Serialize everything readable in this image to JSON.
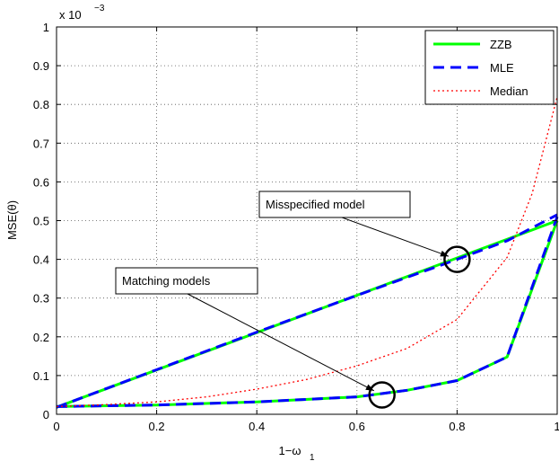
{
  "chart_data": {
    "type": "line",
    "title": "",
    "xlabel": "1−ω",
    "xlabel_sub": "1",
    "ylabel": "MSE(θ)",
    "y_exponent_prefix": "x 10",
    "y_exponent_power": "−3",
    "xlim": [
      0,
      1
    ],
    "ylim": [
      0,
      1
    ],
    "xticks": [
      "0",
      "0.2",
      "0.4",
      "0.6",
      "0.8",
      "1"
    ],
    "yticks": [
      "0",
      "0.1",
      "0.2",
      "0.3",
      "0.4",
      "0.5",
      "0.6",
      "0.7",
      "0.8",
      "0.9",
      "1"
    ],
    "grid": true,
    "legend_position": "top-right",
    "series": [
      {
        "name": "ZZB",
        "group": "misspecified",
        "color": "#00ff00",
        "dash": "solid",
        "width": 3,
        "x": [
          0,
          1
        ],
        "y": [
          0.018,
          0.5
        ]
      },
      {
        "name": "MLE",
        "group": "misspecified",
        "color": "#0000ff",
        "dash": "dashed",
        "width": 3,
        "x": [
          0,
          0.2,
          0.4,
          0.6,
          0.8,
          0.9,
          1
        ],
        "y": [
          0.018,
          0.115,
          0.212,
          0.307,
          0.4,
          0.448,
          0.515
        ]
      },
      {
        "name": "ZZB",
        "group": "matching",
        "color": "#00ff00",
        "dash": "solid",
        "width": 3,
        "x": [
          0,
          0.2,
          0.4,
          0.6,
          0.7,
          0.8,
          0.9,
          1
        ],
        "y": [
          0.02,
          0.024,
          0.032,
          0.045,
          0.062,
          0.087,
          0.148,
          0.5
        ]
      },
      {
        "name": "MLE",
        "group": "matching",
        "color": "#0000ff",
        "dash": "dashed",
        "width": 3,
        "x": [
          0,
          0.2,
          0.4,
          0.6,
          0.7,
          0.8,
          0.9,
          1
        ],
        "y": [
          0.02,
          0.024,
          0.032,
          0.045,
          0.062,
          0.087,
          0.148,
          0.51
        ]
      },
      {
        "name": "Median",
        "color": "#ff0000",
        "dash": "dotted",
        "width": 1.3,
        "x": [
          0,
          0.1,
          0.2,
          0.3,
          0.4,
          0.5,
          0.6,
          0.7,
          0.8,
          0.9,
          0.95,
          1
        ],
        "y": [
          0.02,
          0.025,
          0.032,
          0.045,
          0.065,
          0.09,
          0.125,
          0.17,
          0.245,
          0.405,
          0.57,
          0.82
        ]
      }
    ],
    "legend": [
      {
        "name": "ZZB",
        "color": "#00ff00",
        "dash": "solid"
      },
      {
        "name": "MLE",
        "color": "#0000ff",
        "dash": "dashed"
      },
      {
        "name": "Median",
        "color": "#ff0000",
        "dash": "dotted"
      }
    ],
    "annotations": [
      {
        "text": "Misspecified model",
        "target_x": 0.8,
        "target_y": 0.4
      },
      {
        "text": "Matching models",
        "target_x": 0.65,
        "target_y": 0.05
      }
    ]
  }
}
